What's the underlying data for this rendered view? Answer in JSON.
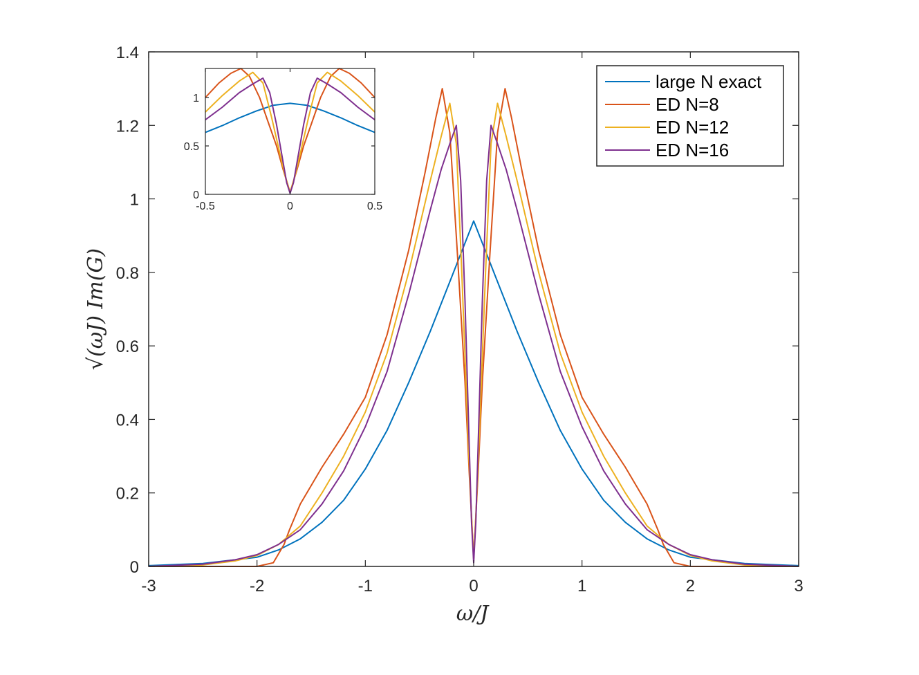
{
  "chart_data": [
    {
      "type": "line",
      "role": "main",
      "xlabel": "ω/J",
      "ylabel": "√(ωJ) Im(G)",
      "xlim": [
        -3,
        3
      ],
      "ylim": [
        0,
        1.4
      ],
      "xticks": [
        -3,
        -2,
        -1,
        0,
        1,
        2,
        3
      ],
      "yticks": [
        0,
        0.2,
        0.4,
        0.6,
        0.8,
        1,
        1.2,
        1.4
      ],
      "xtick_labels": [
        "-3",
        "-2",
        "-1",
        "0",
        "1",
        "2",
        "3"
      ],
      "ytick_labels": [
        "0",
        "0.2",
        "0.4",
        "0.6",
        "0.8",
        "1",
        "1.2",
        "1.4"
      ],
      "grid": false,
      "legend": "top-right",
      "series": [
        {
          "name": "large N exact",
          "color": "#0072BD",
          "x": [
            -3,
            -2.5,
            -2.0,
            -1.8,
            -1.6,
            -1.4,
            -1.2,
            -1.0,
            -0.8,
            -0.6,
            -0.4,
            -0.2,
            0,
            0.2,
            0.4,
            0.6,
            0.8,
            1.0,
            1.2,
            1.4,
            1.6,
            1.8,
            2.0,
            2.5,
            3
          ],
          "y": [
            0.002,
            0.008,
            0.025,
            0.045,
            0.075,
            0.12,
            0.18,
            0.265,
            0.37,
            0.5,
            0.64,
            0.79,
            0.94,
            0.79,
            0.64,
            0.5,
            0.37,
            0.265,
            0.18,
            0.12,
            0.075,
            0.045,
            0.025,
            0.008,
            0.002
          ]
        },
        {
          "name": "ED N=8",
          "color": "#D95319",
          "x": [
            -3,
            -2.5,
            -2.0,
            -1.85,
            -1.75,
            -1.7,
            -1.6,
            -1.4,
            -1.2,
            -1.0,
            -0.8,
            -0.6,
            -0.45,
            -0.35,
            -0.29,
            -0.22,
            -0.15,
            -0.08,
            -0.04,
            0,
            0.04,
            0.08,
            0.15,
            0.22,
            0.29,
            0.35,
            0.45,
            0.6,
            0.8,
            1.0,
            1.2,
            1.4,
            1.6,
            1.7,
            1.75,
            1.85,
            2.0,
            2.5,
            3
          ],
          "y": [
            0.0,
            0.0,
            0.0,
            0.01,
            0.06,
            0.1,
            0.17,
            0.27,
            0.36,
            0.46,
            0.63,
            0.86,
            1.07,
            1.22,
            1.3,
            1.18,
            0.85,
            0.5,
            0.25,
            0.02,
            0.25,
            0.5,
            0.85,
            1.18,
            1.3,
            1.22,
            1.07,
            0.86,
            0.63,
            0.46,
            0.36,
            0.27,
            0.17,
            0.1,
            0.06,
            0.01,
            0.0,
            0.0,
            0.0
          ]
        },
        {
          "name": "ED N=12",
          "color": "#EDB120",
          "x": [
            -3,
            -2.5,
            -2.2,
            -2.0,
            -1.8,
            -1.6,
            -1.4,
            -1.2,
            -1.0,
            -0.8,
            -0.6,
            -0.4,
            -0.3,
            -0.22,
            -0.16,
            -0.11,
            -0.06,
            -0.03,
            0,
            0.03,
            0.06,
            0.11,
            0.16,
            0.22,
            0.3,
            0.4,
            0.6,
            0.8,
            1.0,
            1.2,
            1.4,
            1.6,
            1.8,
            2.0,
            2.2,
            2.5,
            3
          ],
          "y": [
            0.0,
            0.004,
            0.015,
            0.03,
            0.06,
            0.11,
            0.2,
            0.3,
            0.42,
            0.58,
            0.8,
            1.05,
            1.17,
            1.26,
            1.15,
            0.8,
            0.42,
            0.2,
            0.02,
            0.2,
            0.42,
            0.8,
            1.15,
            1.26,
            1.17,
            1.05,
            0.8,
            0.58,
            0.42,
            0.3,
            0.2,
            0.11,
            0.06,
            0.03,
            0.015,
            0.004,
            0.0
          ]
        },
        {
          "name": "ED N=16",
          "color": "#7E2F8E",
          "x": [
            -3,
            -2.5,
            -2.2,
            -2.0,
            -1.8,
            -1.6,
            -1.4,
            -1.2,
            -1.0,
            -0.8,
            -0.6,
            -0.4,
            -0.3,
            -0.22,
            -0.16,
            -0.12,
            -0.08,
            -0.04,
            -0.02,
            0,
            0.02,
            0.04,
            0.08,
            0.12,
            0.16,
            0.22,
            0.3,
            0.4,
            0.6,
            0.8,
            1.0,
            1.2,
            1.4,
            1.6,
            1.8,
            2.0,
            2.2,
            2.5,
            3
          ],
          "y": [
            0.0,
            0.006,
            0.018,
            0.032,
            0.06,
            0.1,
            0.17,
            0.26,
            0.38,
            0.53,
            0.74,
            0.97,
            1.08,
            1.15,
            1.2,
            1.05,
            0.72,
            0.32,
            0.12,
            0.01,
            0.12,
            0.32,
            0.72,
            1.05,
            1.2,
            1.15,
            1.08,
            0.97,
            0.74,
            0.53,
            0.38,
            0.26,
            0.17,
            0.1,
            0.06,
            0.032,
            0.018,
            0.006,
            0.0
          ]
        }
      ]
    },
    {
      "type": "line",
      "role": "inset",
      "legend": "none",
      "xlim": [
        -0.5,
        0.5
      ],
      "ylim": [
        0,
        1.3
      ],
      "xticks": [
        -0.5,
        0,
        0.5
      ],
      "yticks": [
        0,
        0.5,
        1
      ],
      "xtick_labels": [
        "-0.5",
        "0",
        "0.5"
      ],
      "ytick_labels": [
        "0",
        "0.5",
        "1"
      ],
      "grid": false,
      "series": [
        {
          "color": "#0072BD",
          "x": [
            -0.5,
            -0.4,
            -0.3,
            -0.2,
            -0.1,
            0,
            0.1,
            0.2,
            0.3,
            0.4,
            0.5
          ],
          "y": [
            0.64,
            0.71,
            0.79,
            0.86,
            0.92,
            0.94,
            0.92,
            0.86,
            0.79,
            0.71,
            0.64
          ]
        },
        {
          "color": "#D95319",
          "x": [
            -0.5,
            -0.42,
            -0.35,
            -0.29,
            -0.24,
            -0.18,
            -0.13,
            -0.08,
            -0.04,
            0,
            0.04,
            0.08,
            0.13,
            0.18,
            0.24,
            0.29,
            0.35,
            0.42,
            0.5
          ],
          "y": [
            1.0,
            1.15,
            1.25,
            1.3,
            1.22,
            1.0,
            0.75,
            0.5,
            0.25,
            0.02,
            0.25,
            0.5,
            0.75,
            1.0,
            1.22,
            1.3,
            1.25,
            1.15,
            1.0
          ]
        },
        {
          "color": "#EDB120",
          "x": [
            -0.5,
            -0.4,
            -0.3,
            -0.22,
            -0.16,
            -0.11,
            -0.06,
            -0.03,
            0,
            0.03,
            0.06,
            0.11,
            0.16,
            0.22,
            0.3,
            0.4,
            0.5
          ],
          "y": [
            0.85,
            1.02,
            1.17,
            1.26,
            1.15,
            0.8,
            0.42,
            0.2,
            0.02,
            0.2,
            0.42,
            0.8,
            1.15,
            1.26,
            1.17,
            1.02,
            0.85
          ]
        },
        {
          "color": "#7E2F8E",
          "x": [
            -0.5,
            -0.4,
            -0.3,
            -0.22,
            -0.16,
            -0.12,
            -0.08,
            -0.04,
            -0.02,
            0,
            0.02,
            0.04,
            0.08,
            0.12,
            0.16,
            0.22,
            0.3,
            0.4,
            0.5
          ],
          "y": [
            0.77,
            0.9,
            1.05,
            1.14,
            1.2,
            1.05,
            0.72,
            0.32,
            0.12,
            0.01,
            0.12,
            0.32,
            0.72,
            1.05,
            1.2,
            1.14,
            1.05,
            0.9,
            0.77
          ]
        }
      ]
    }
  ]
}
